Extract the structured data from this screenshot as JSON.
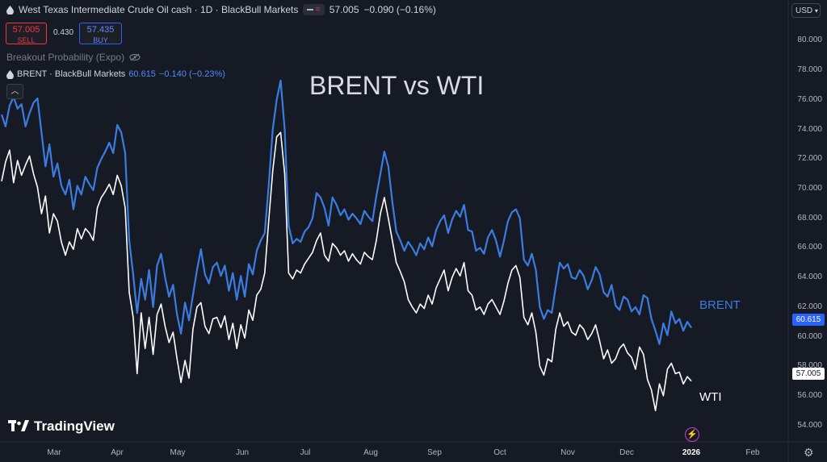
{
  "header": {
    "instrument": "West Texas Intermediate Crude Oil cash · 1D · BlackBull Markets",
    "last": "57.005",
    "change": "−0.090 (−0.16%)",
    "sell_price": "57.005",
    "sell_label": "SELL",
    "spread": "0.430",
    "buy_price": "57.435",
    "buy_label": "BUY",
    "indicator": "Breakout Probability (Expo)",
    "overlay_name": "BRENT · BlackBull Markets",
    "overlay_value": "60.615",
    "overlay_change": "−0.140 (−0.23%)"
  },
  "currency": "USD",
  "logo": "TradingView",
  "colors": {
    "brent": "#3b7ce0",
    "wti": "#ffffff",
    "background": "#161a25"
  },
  "icons": [
    "oil-drop-icon",
    "eye-off-icon",
    "chevron-up-icon",
    "tradingview-logo-icon",
    "bolt-icon",
    "gear-icon"
  ],
  "chart_data": {
    "type": "line",
    "title": "BRENT vs WTI",
    "ylim": [
      53,
      81
    ],
    "yticks": [
      "54.000",
      "56.000",
      "58.000",
      "60.000",
      "62.000",
      "64.000",
      "66.000",
      "68.000",
      "70.000",
      "72.000",
      "74.000",
      "76.000",
      "78.000",
      "80.000"
    ],
    "months": [
      "Mar",
      "Apr",
      "May",
      "Jun",
      "Jul",
      "Aug",
      "Sep",
      "Oct",
      "Nov",
      "Dec",
      "2026",
      "Feb"
    ],
    "last_values": {
      "brent": "60.615",
      "wti": "57.005"
    },
    "series": [
      {
        "name": "BRENT",
        "values": [
          75.0,
          74.2,
          75.6,
          76.2,
          75.4,
          75.7,
          74.2,
          75.1,
          75.8,
          76.1,
          73.8,
          71.5,
          73.0,
          70.8,
          71.7,
          70.2,
          69.6,
          70.6,
          68.6,
          70.2,
          69.6,
          70.8,
          70.3,
          69.9,
          71.4,
          72.0,
          72.5,
          73.1,
          72.4,
          74.3,
          73.8,
          72.4,
          66.5,
          64.2,
          61.6,
          63.9,
          62.5,
          64.5,
          62.0,
          64.8,
          65.6,
          64.0,
          62.7,
          63.5,
          61.5,
          60.2,
          62.3,
          61.1,
          62.8,
          64.5,
          65.9,
          64.2,
          63.6,
          64.7,
          65.0,
          64.1,
          64.8,
          63.1,
          64.3,
          62.5,
          64.1,
          62.7,
          64.9,
          64.2,
          65.8,
          66.5,
          67.0,
          70.2,
          74.0,
          76.0,
          77.3,
          74.0,
          67.5,
          66.3,
          66.6,
          66.4,
          67.1,
          67.4,
          68.0,
          69.7,
          69.4,
          68.7,
          67.5,
          69.4,
          68.9,
          68.2,
          68.6,
          67.9,
          68.3,
          68.0,
          67.6,
          68.5,
          68.1,
          67.8,
          69.5,
          71.0,
          72.5,
          71.5,
          69.1,
          67.1,
          66.5,
          65.8,
          66.4,
          66.0,
          65.5,
          66.3,
          65.9,
          66.7,
          66.1,
          67.2,
          67.8,
          68.2,
          67.0,
          67.9,
          68.5,
          68.1,
          68.9,
          67.2,
          67.1,
          65.8,
          66.0,
          65.6,
          66.7,
          67.2,
          66.5,
          65.4,
          66.5,
          67.8,
          68.4,
          68.6,
          68.0,
          65.2,
          64.8,
          65.6,
          64.5,
          62.0,
          61.2,
          61.8,
          61.6,
          63.4,
          65.0,
          64.6,
          64.9,
          64.0,
          63.9,
          64.5,
          64.1,
          63.2,
          63.8,
          64.7,
          64.2,
          63.0,
          62.7,
          63.5,
          62.1,
          61.8,
          62.7,
          62.5,
          61.7,
          62.0,
          61.5,
          62.8,
          62.6,
          61.2,
          60.4,
          59.5,
          60.9,
          60.1,
          61.7,
          60.9,
          61.2,
          60.4,
          61.0,
          60.6
        ]
      },
      {
        "name": "WTI",
        "values": [
          70.5,
          71.8,
          72.6,
          70.4,
          71.9,
          70.9,
          71.6,
          72.2,
          71.0,
          70.1,
          68.3,
          69.5,
          67.0,
          68.3,
          67.8,
          66.4,
          65.5,
          66.4,
          65.9,
          67.3,
          66.6,
          67.3,
          67.0,
          66.5,
          68.7,
          69.4,
          69.8,
          70.3,
          69.6,
          70.9,
          70.2,
          68.7,
          63.0,
          61.3,
          57.5,
          61.6,
          59.2,
          61.3,
          58.8,
          61.5,
          62.2,
          60.7,
          59.6,
          60.3,
          58.5,
          56.9,
          58.4,
          57.2,
          60.5,
          62.0,
          62.3,
          60.7,
          60.2,
          61.2,
          61.3,
          60.6,
          61.4,
          59.8,
          60.9,
          59.2,
          60.8,
          59.9,
          61.8,
          61.1,
          62.8,
          63.2,
          64.3,
          67.8,
          71.2,
          73.5,
          73.8,
          71.0,
          64.3,
          63.9,
          64.5,
          64.3,
          64.9,
          65.3,
          65.7,
          66.5,
          67.0,
          65.5,
          65.1,
          66.3,
          66.0,
          65.5,
          65.8,
          65.1,
          65.6,
          65.2,
          64.9,
          65.7,
          65.4,
          65.2,
          66.5,
          68.3,
          69.4,
          68.0,
          66.5,
          65.0,
          64.4,
          63.7,
          62.5,
          62.0,
          61.6,
          62.2,
          61.9,
          62.8,
          62.2,
          63.3,
          63.9,
          64.5,
          63.1,
          64.0,
          64.6,
          64.1,
          65.0,
          63.1,
          62.8,
          61.8,
          62.0,
          61.5,
          62.2,
          62.5,
          62.0,
          61.5,
          62.4,
          63.6,
          64.5,
          64.8,
          64.0,
          61.3,
          60.8,
          61.6,
          60.3,
          58.0,
          57.4,
          58.5,
          58.3,
          60.5,
          61.6,
          60.7,
          61.0,
          60.3,
          60.1,
          60.8,
          60.5,
          59.8,
          60.2,
          60.8,
          59.7,
          58.5,
          59.1,
          58.2,
          58.5,
          59.2,
          59.5,
          58.9,
          58.6,
          57.8,
          59.3,
          58.8,
          57.1,
          56.4,
          55.0,
          56.8,
          56.0,
          57.8,
          58.2,
          57.5,
          57.6,
          56.8,
          57.3,
          57.0
        ]
      }
    ]
  }
}
